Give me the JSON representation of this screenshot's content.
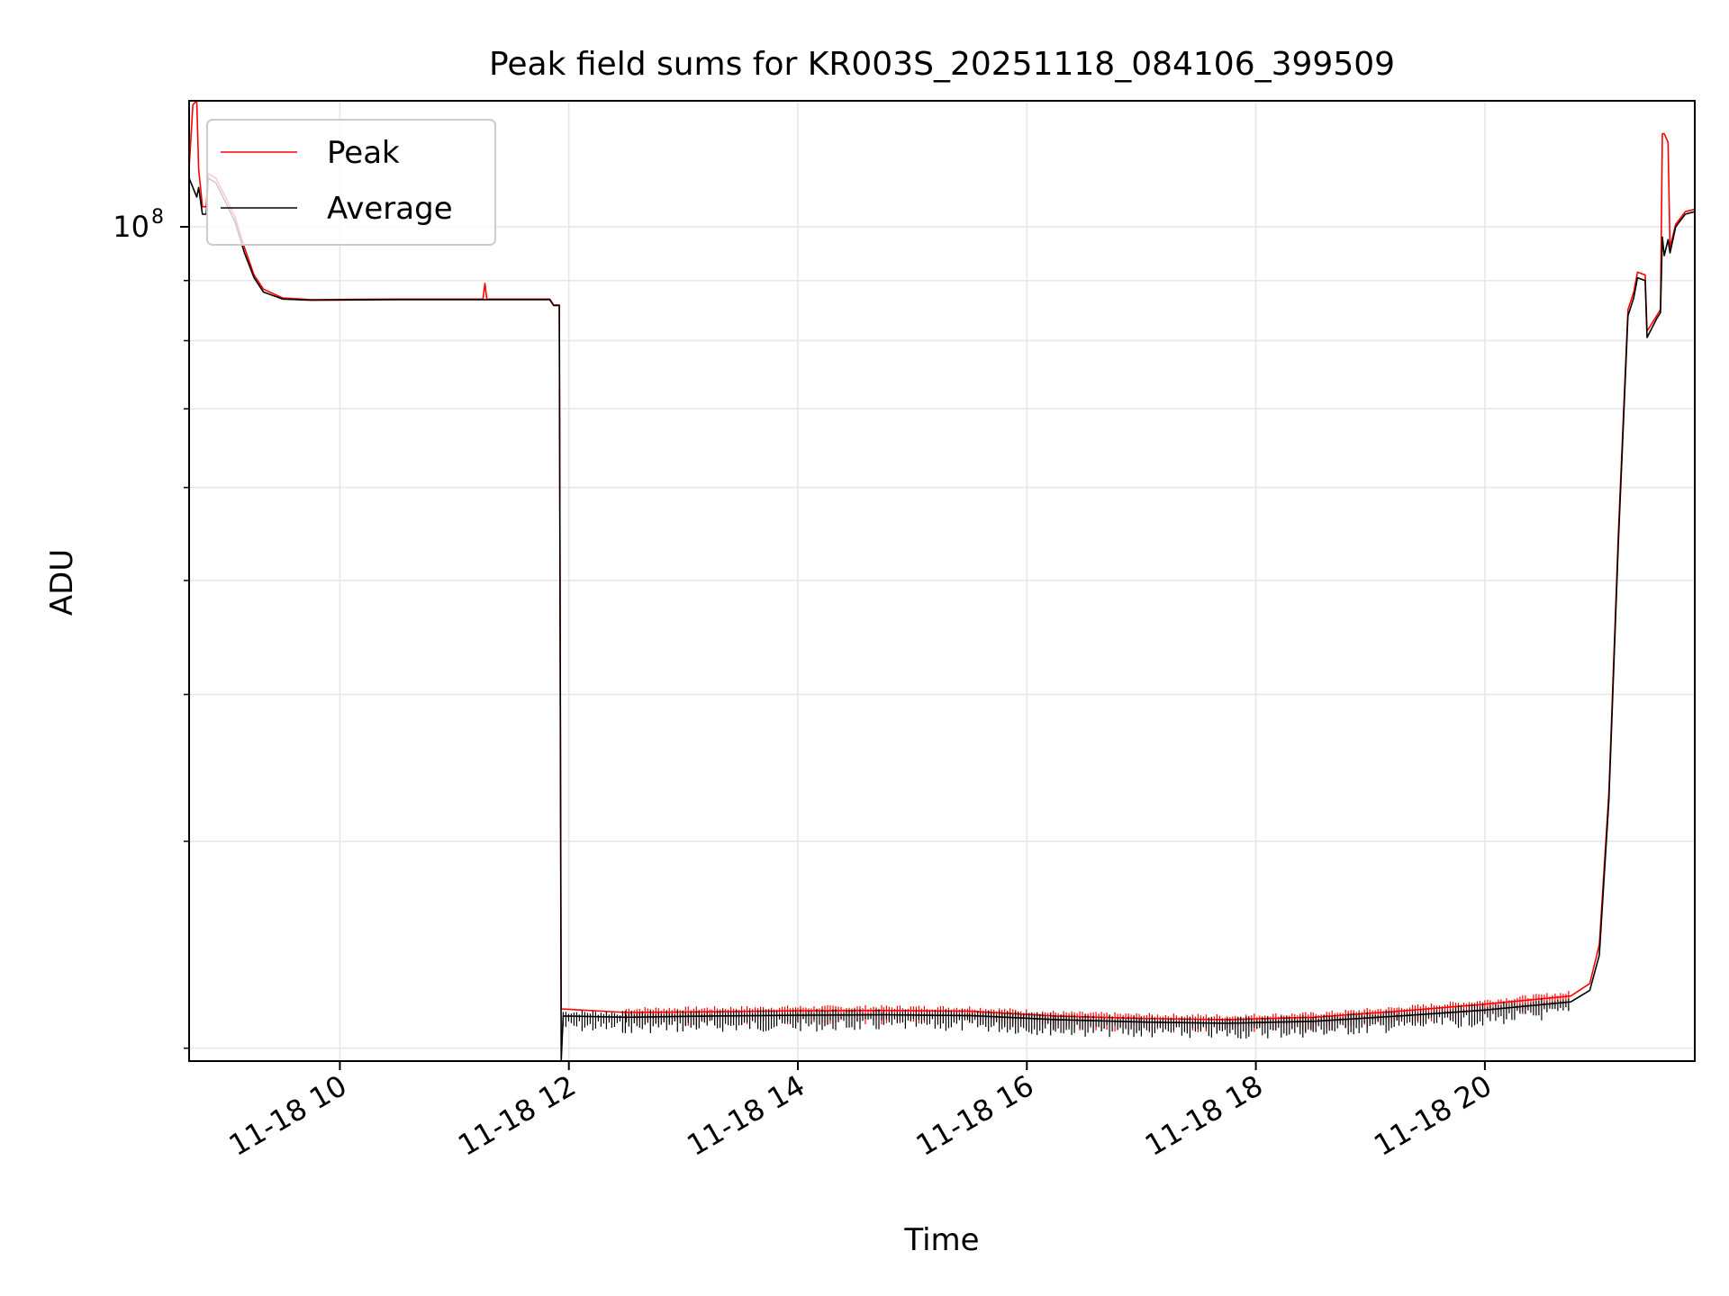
{
  "chart_data": {
    "type": "line",
    "title": "Peak field sums for KR003S_20251118_084106_399509",
    "xlabel": "Time",
    "ylabel": "ADU",
    "x_scale": "time",
    "y_scale": "log",
    "xlim": [
      "2025-11-18 08:41",
      "2025-11-18 21:50"
    ],
    "ylim": [
      19500000,
      128000000
    ],
    "x_ticks": [
      {
        "t": "2025-11-18 10:00",
        "label": "11-18 10"
      },
      {
        "t": "2025-11-18 12:00",
        "label": "11-18 12"
      },
      {
        "t": "2025-11-18 14:00",
        "label": "11-18 14"
      },
      {
        "t": "2025-11-18 16:00",
        "label": "11-18 16"
      },
      {
        "t": "2025-11-18 18:00",
        "label": "11-18 18"
      },
      {
        "t": "2025-11-18 20:00",
        "label": "11-18 20"
      }
    ],
    "y_major_ticks": [
      {
        "value": 100000000,
        "base": "10",
        "exp": "8"
      }
    ],
    "y_minor_ticks": [
      20000000,
      30000000,
      40000000,
      50000000,
      60000000,
      70000000,
      80000000,
      90000000
    ],
    "grid": true,
    "legend_position": "top-left",
    "series": [
      {
        "name": "Peak",
        "color": "#ff0000",
        "points": [
          [
            "2025-11-18 08:41",
            112000000
          ],
          [
            "2025-11-18 08:43",
            127000000
          ],
          [
            "2025-11-18 08:45",
            128000000
          ],
          [
            "2025-11-18 08:46",
            112000000
          ],
          [
            "2025-11-18 08:48",
            104000000
          ],
          [
            "2025-11-18 08:50",
            104000000
          ],
          [
            "2025-11-18 08:51",
            111000000
          ],
          [
            "2025-11-18 08:55",
            110000000
          ],
          [
            "2025-11-18 09:00",
            106000000
          ],
          [
            "2025-11-18 09:05",
            102000000
          ],
          [
            "2025-11-18 09:10",
            96000000
          ],
          [
            "2025-11-18 09:15",
            91000000
          ],
          [
            "2025-11-18 09:20",
            88500000
          ],
          [
            "2025-11-18 09:30",
            87000000
          ],
          [
            "2025-11-18 09:45",
            86700000
          ],
          [
            "2025-11-18 10:30",
            86800000
          ],
          [
            "2025-11-18 11:15",
            86800000
          ],
          [
            "2025-11-18 11:16",
            89500000
          ],
          [
            "2025-11-18 11:17",
            86800000
          ],
          [
            "2025-11-18 11:50",
            86800000
          ],
          [
            "2025-11-18 11:52",
            85800000
          ],
          [
            "2025-11-18 11:55",
            85800000
          ],
          [
            "2025-11-18 11:56",
            21600000
          ],
          [
            "2025-11-18 12:30",
            21450000
          ],
          [
            "2025-11-18 13:15",
            21480000
          ],
          [
            "2025-11-18 14:00",
            21520000
          ],
          [
            "2025-11-18 14:45",
            21530000
          ],
          [
            "2025-11-18 15:30",
            21500000
          ],
          [
            "2025-11-18 16:15",
            21300000
          ],
          [
            "2025-11-18 17:00",
            21200000
          ],
          [
            "2025-11-18 17:45",
            21150000
          ],
          [
            "2025-11-18 18:30",
            21250000
          ],
          [
            "2025-11-18 19:15",
            21500000
          ],
          [
            "2025-11-18 20:00",
            21800000
          ],
          [
            "2025-11-18 20:45",
            22150000
          ],
          [
            "2025-11-18 20:55",
            22700000
          ],
          [
            "2025-11-18 21:00",
            24500000
          ],
          [
            "2025-11-18 21:05",
            33000000
          ],
          [
            "2025-11-18 21:10",
            55000000
          ],
          [
            "2025-11-18 21:15",
            85000000
          ],
          [
            "2025-11-18 21:18",
            88000000
          ],
          [
            "2025-11-18 21:20",
            91500000
          ],
          [
            "2025-11-18 21:24",
            91000000
          ],
          [
            "2025-11-18 21:25",
            81500000
          ],
          [
            "2025-11-18 21:30",
            84000000
          ],
          [
            "2025-11-18 21:32",
            85000000
          ],
          [
            "2025-11-18 21:33",
            120000000
          ],
          [
            "2025-11-18 21:34",
            120000000
          ],
          [
            "2025-11-18 21:36",
            118000000
          ],
          [
            "2025-11-18 21:37",
            96000000
          ],
          [
            "2025-11-18 21:40",
            100500000
          ],
          [
            "2025-11-18 21:45",
            103000000
          ],
          [
            "2025-11-18 21:50",
            103500000
          ]
        ]
      },
      {
        "name": "Average",
        "color": "#000000",
        "points": [
          [
            "2025-11-18 08:41",
            110000000
          ],
          [
            "2025-11-18 08:43",
            108000000
          ],
          [
            "2025-11-18 08:45",
            106000000
          ],
          [
            "2025-11-18 08:46",
            108000000
          ],
          [
            "2025-11-18 08:48",
            102500000
          ],
          [
            "2025-11-18 08:50",
            102500000
          ],
          [
            "2025-11-18 08:51",
            110000000
          ],
          [
            "2025-11-18 08:55",
            109000000
          ],
          [
            "2025-11-18 09:00",
            105000000
          ],
          [
            "2025-11-18 09:05",
            101000000
          ],
          [
            "2025-11-18 09:10",
            95000000
          ],
          [
            "2025-11-18 09:15",
            90500000
          ],
          [
            "2025-11-18 09:20",
            88000000
          ],
          [
            "2025-11-18 09:30",
            86800000
          ],
          [
            "2025-11-18 09:45",
            86600000
          ],
          [
            "2025-11-18 10:30",
            86700000
          ],
          [
            "2025-11-18 11:15",
            86700000
          ],
          [
            "2025-11-18 11:16",
            86700000
          ],
          [
            "2025-11-18 11:17",
            86700000
          ],
          [
            "2025-11-18 11:50",
            86700000
          ],
          [
            "2025-11-18 11:52",
            85700000
          ],
          [
            "2025-11-18 11:55",
            85700000
          ],
          [
            "2025-11-18 11:56",
            19500000
          ],
          [
            "2025-11-18 11:57",
            21300000
          ],
          [
            "2025-11-18 12:30",
            21250000
          ],
          [
            "2025-11-18 13:15",
            21300000
          ],
          [
            "2025-11-18 14:00",
            21330000
          ],
          [
            "2025-11-18 14:45",
            21350000
          ],
          [
            "2025-11-18 15:30",
            21320000
          ],
          [
            "2025-11-18 16:15",
            21150000
          ],
          [
            "2025-11-18 17:00",
            21050000
          ],
          [
            "2025-11-18 17:45",
            21000000
          ],
          [
            "2025-11-18 18:30",
            21080000
          ],
          [
            "2025-11-18 19:15",
            21300000
          ],
          [
            "2025-11-18 20:00",
            21550000
          ],
          [
            "2025-11-18 20:45",
            21900000
          ],
          [
            "2025-11-18 20:55",
            22400000
          ],
          [
            "2025-11-18 21:00",
            24000000
          ],
          [
            "2025-11-18 21:05",
            32500000
          ],
          [
            "2025-11-18 21:10",
            54000000
          ],
          [
            "2025-11-18 21:15",
            84000000
          ],
          [
            "2025-11-18 21:18",
            87000000
          ],
          [
            "2025-11-18 21:20",
            90500000
          ],
          [
            "2025-11-18 21:24",
            90000000
          ],
          [
            "2025-11-18 21:25",
            80500000
          ],
          [
            "2025-11-18 21:30",
            83500000
          ],
          [
            "2025-11-18 21:32",
            84500000
          ],
          [
            "2025-11-18 21:33",
            98000000
          ],
          [
            "2025-11-18 21:34",
            94500000
          ],
          [
            "2025-11-18 21:36",
            97500000
          ],
          [
            "2025-11-18 21:37",
            95000000
          ],
          [
            "2025-11-18 21:40",
            100000000
          ],
          [
            "2025-11-18 21:45",
            102500000
          ],
          [
            "2025-11-18 21:50",
            103000000
          ]
        ]
      }
    ]
  }
}
